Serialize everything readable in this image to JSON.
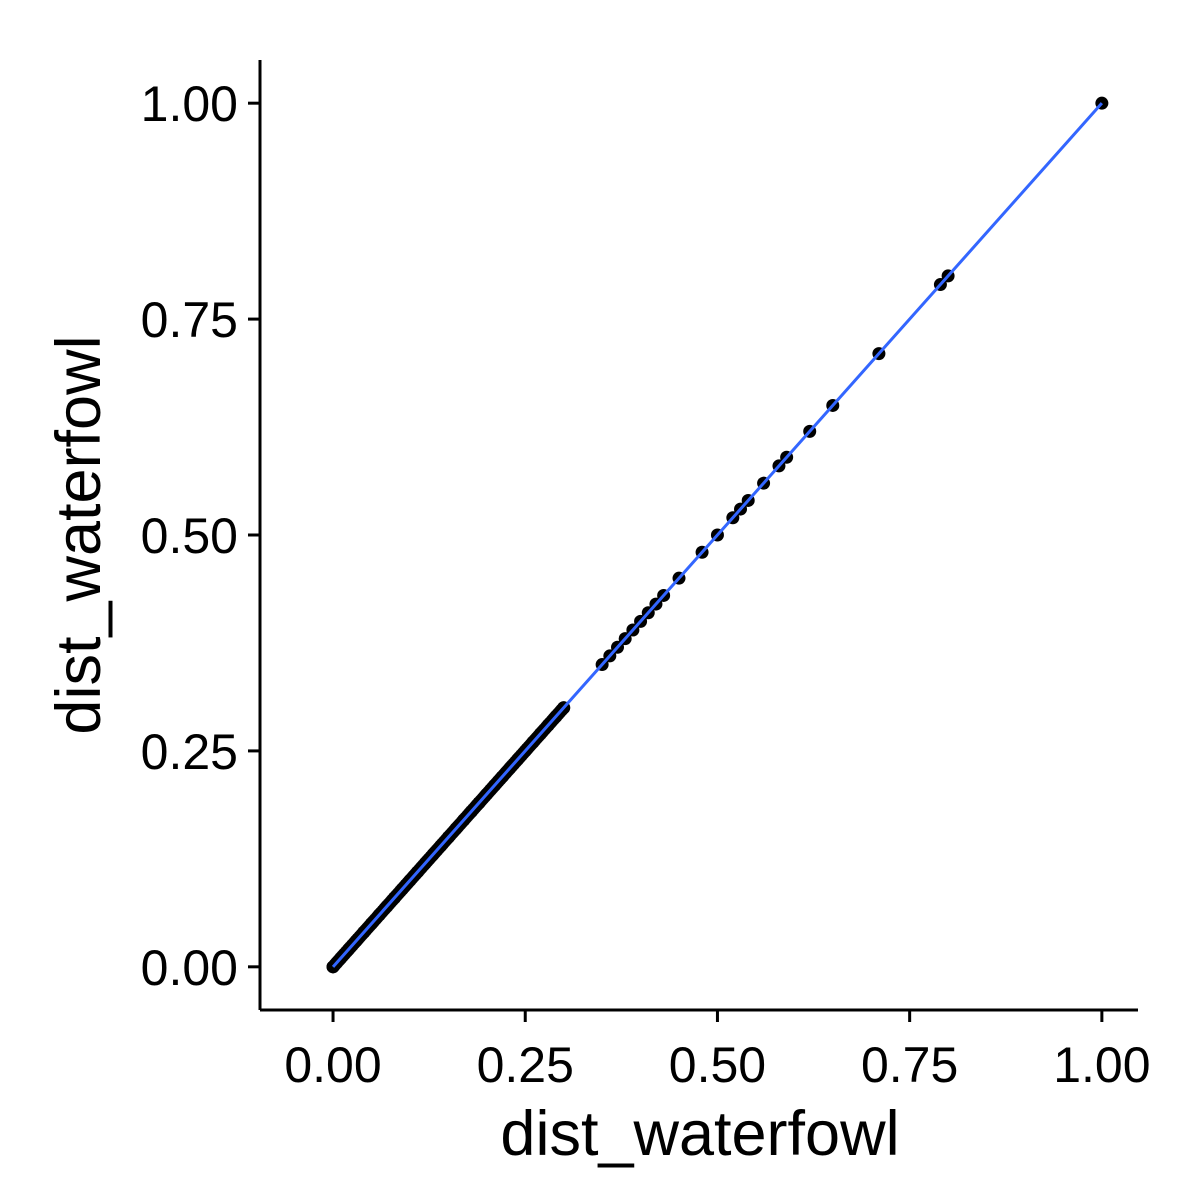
{
  "chart_data": {
    "type": "scatter",
    "title": "",
    "xlabel": "dist_waterfowl",
    "ylabel": "dist_waterfowl",
    "xlim": [
      -0.095,
      2.1
    ],
    "ylim": [
      -0.05,
      1.05
    ],
    "xlim_note": "x axis spans 0.00 to 1.00 over ticks",
    "x_range": [
      -0.095,
      1.047
    ],
    "y_range": [
      -0.05,
      1.05
    ],
    "x_ticks": [
      0,
      0.25,
      0.5,
      0.75,
      1
    ],
    "y_ticks": [
      0,
      0.25,
      0.5,
      0.75,
      1
    ],
    "x_tick_labels": [
      "0.00",
      "0.25",
      "0.50",
      "0.75",
      "1.00"
    ],
    "y_tick_labels": [
      "0.00",
      "0.25",
      "0.50",
      "0.75",
      "1.00"
    ],
    "grid": false,
    "legend": "none",
    "series": [
      {
        "kind": "points",
        "x": [
          0,
          0.01,
          0.02,
          0.03,
          0.04,
          0.05,
          0.06,
          0.07,
          0.08,
          0.09,
          0.1,
          0.11,
          0.12,
          0.13,
          0.14,
          0.15,
          0.16,
          0.17,
          0.18,
          0.19,
          0.2,
          0.21,
          0.22,
          0.23,
          0.24,
          0.25,
          0.26,
          0.27,
          0.28,
          0.29,
          0.3,
          0.35,
          0.36,
          0.37,
          0.38,
          0.39,
          0.4,
          0.41,
          0.42,
          0.43,
          0.45,
          0.48,
          0.5,
          0.52,
          0.53,
          0.54,
          0.56,
          0.58,
          0.59,
          0.62,
          0.65,
          0.71,
          0.79,
          0.8,
          1
        ],
        "y": [
          0,
          0.01,
          0.02,
          0.03,
          0.04,
          0.05,
          0.06,
          0.07,
          0.08,
          0.09,
          0.1,
          0.11,
          0.12,
          0.13,
          0.14,
          0.15,
          0.16,
          0.17,
          0.18,
          0.19,
          0.2,
          0.21,
          0.22,
          0.23,
          0.24,
          0.25,
          0.26,
          0.27,
          0.28,
          0.29,
          0.3,
          0.35,
          0.36,
          0.37,
          0.38,
          0.39,
          0.4,
          0.41,
          0.42,
          0.43,
          0.45,
          0.48,
          0.5,
          0.52,
          0.53,
          0.54,
          0.56,
          0.58,
          0.59,
          0.62,
          0.65,
          0.71,
          0.79,
          0.8,
          1
        ],
        "color": "#000000"
      },
      {
        "kind": "fit-line",
        "x": [
          0,
          1
        ],
        "y": [
          0,
          1
        ],
        "color": "#3366FF"
      }
    ]
  }
}
